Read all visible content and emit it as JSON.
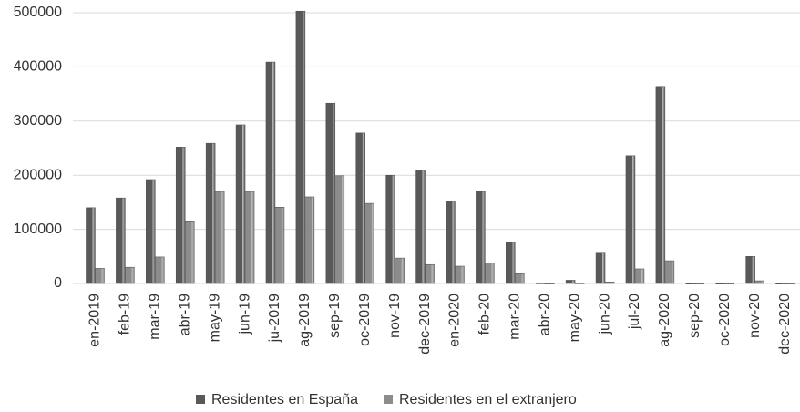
{
  "chart_data": {
    "type": "bar",
    "categories": [
      "en-2019",
      "feb-19",
      "mar-19",
      "abr-19",
      "may-19",
      "jun-19",
      "ju-2019",
      "ag-2019",
      "sep-19",
      "oc-2019",
      "nov-19",
      "dec-2019",
      "en-2020",
      "feb-20",
      "mar-20",
      "abr-20",
      "may-20",
      "jun-20",
      "jul-20",
      "ag-2020",
      "sep-20",
      "oc-2020",
      "nov-20",
      "dec-2020"
    ],
    "series": [
      {
        "name": "Residentes en España",
        "color": "#595959",
        "values": [
          140000,
          158000,
          192000,
          252000,
          259000,
          293000,
          409000,
          503000,
          333000,
          278000,
          200000,
          210000,
          152000,
          170000,
          76000,
          1000,
          6000,
          56000,
          236000,
          364000,
          500,
          500,
          50000,
          500
        ]
      },
      {
        "name": "Residentes en el extranjero",
        "color": "#8c8c8c",
        "values": [
          28000,
          30000,
          49000,
          114000,
          170000,
          170000,
          141000,
          160000,
          199000,
          148000,
          47000,
          35000,
          32000,
          38000,
          18000,
          500,
          1000,
          3000,
          27000,
          42000,
          500,
          500,
          5000,
          500
        ]
      }
    ],
    "ylim": [
      0,
      500000
    ],
    "yticks": [
      0,
      100000,
      200000,
      300000,
      400000,
      500000
    ],
    "grid": true,
    "legend": "bottom"
  }
}
